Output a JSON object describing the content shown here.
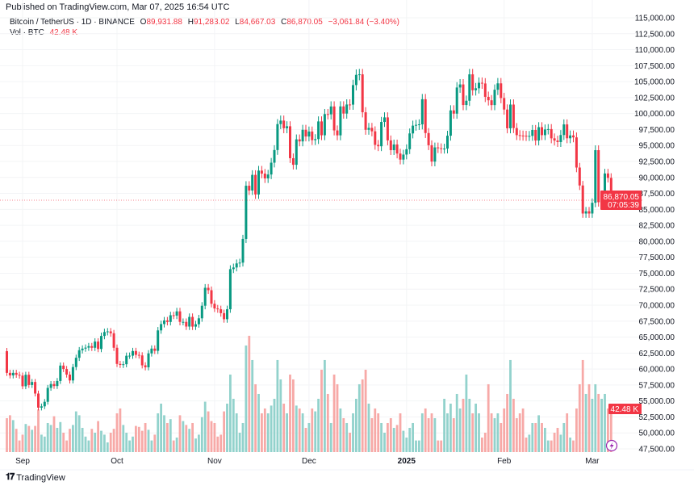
{
  "header": {
    "published": "Published on TradingView.com, Mar 07, 2025 16:54 UTC"
  },
  "legend": {
    "symbol": "Bitcoin / TetherUS · 1D · BINANCE",
    "open_label": "O",
    "open": "89,931.88",
    "high_label": "H",
    "high": "91,283.02",
    "low_label": "L",
    "low": "84,667.03",
    "close_label": "C",
    "close": "86,870.05",
    "change": "−3,061.84 (−3.40%)",
    "vol_label": "Vol · BTC",
    "vol": "42.48 K"
  },
  "price_axis": {
    "labels": [
      "115,000.00",
      "112,500.00",
      "110,000.00",
      "107,500.00",
      "105,000.00",
      "102,500.00",
      "100,000.00",
      "97,500.00",
      "95,000.00",
      "92,500.00",
      "90,000.00",
      "87,500.00",
      "85,000.00",
      "82,500.00",
      "80,000.00",
      "77,500.00",
      "75,000.00",
      "72,500.00",
      "70,000.00",
      "67,500.00",
      "65,000.00",
      "62,500.00",
      "60,000.00",
      "57,500.00",
      "55,000.00",
      "52,500.00",
      "50,000.00",
      "47,500.00"
    ],
    "current_price": "86,870.05",
    "countdown": "07:05:39",
    "volume_badge": "42.48 K"
  },
  "time_axis": [
    {
      "label": "Sep",
      "day": 5,
      "bold": false
    },
    {
      "label": "Oct",
      "day": 35,
      "bold": false
    },
    {
      "label": "Nov",
      "day": 66,
      "bold": false
    },
    {
      "label": "Dec",
      "day": 96,
      "bold": false
    },
    {
      "label": "2025",
      "day": 127,
      "bold": true
    },
    {
      "label": "Feb",
      "day": 158,
      "bold": false
    },
    {
      "label": "Mar",
      "day": 186,
      "bold": false
    }
  ],
  "colors": {
    "up": "#089981",
    "down": "#f23645",
    "up_volume": "#92d2cc",
    "down_volume": "#f7a9a7",
    "lightning": "#9c27b0"
  },
  "footer": {
    "brand": "TradingView"
  },
  "chart_data": {
    "type": "candlestick",
    "symbol": "BTCUSDT",
    "interval": "1D",
    "first_date": "2024-08-27",
    "first_open": 62800,
    "ylim": [
      47500,
      115000
    ],
    "closes": [
      59400,
      59000,
      59400,
      59100,
      58970,
      57300,
      59100,
      57500,
      57970,
      56160,
      53950,
      54160,
      54870,
      57050,
      57650,
      57340,
      58130,
      60540,
      60000,
      59130,
      58210,
      60310,
      61760,
      62940,
      63200,
      63350,
      63580,
      63330,
      64300,
      63140,
      65180,
      65790,
      65890,
      65600,
      63330,
      60800,
      60650,
      60750,
      62080,
      62090,
      62820,
      62220,
      62130,
      60580,
      60270,
      62450,
      63200,
      62850,
      66050,
      67040,
      67610,
      67370,
      68420,
      68360,
      69030,
      67380,
      67380,
      66650,
      68160,
      66640,
      67010,
      67940,
      69910,
      72720,
      72340,
      70220,
      69480,
      69360,
      68750,
      67800,
      69360,
      75640,
      75900,
      76540,
      76660,
      80370,
      88700,
      87950,
      90400,
      87330,
      91070,
      90600,
      89850,
      90460,
      92310,
      94290,
      98350,
      98900,
      97700,
      98010,
      93010,
      91980,
      95960,
      95640,
      97460,
      96410,
      97190,
      95840,
      96000,
      98770,
      96600,
      99920,
      99880,
      101110,
      97360,
      96590,
      101120,
      100000,
      101420,
      101400,
      104460,
      106060,
      106140,
      100200,
      97460,
      97760,
      97220,
      95100,
      94880,
      98690,
      99400,
      95800,
      94270,
      95160,
      93740,
      92790,
      93580,
      94420,
      96890,
      98110,
      98230,
      98310,
      102250,
      96950,
      95040,
      92480,
      94700,
      94570,
      94490,
      94520,
      96530,
      100500,
      99990,
      104080,
      104560,
      101340,
      102010,
      106140,
      103650,
      103960,
      104820,
      104710,
      102620,
      102080,
      101330,
      103730,
      104730,
      102430,
      100630,
      97690,
      101410,
      97730,
      96620,
      96560,
      96530,
      96480,
      96500,
      97430,
      95780,
      97870,
      96620,
      97510,
      97570,
      96120,
      95770,
      95540,
      96640,
      98300,
      96130,
      96580,
      96270,
      91550,
      88740,
      84350,
      84700,
      84350,
      86030,
      94270,
      86120,
      87220,
      90620,
      89930,
      86870
    ],
    "volumes_k": [
      35,
      38,
      33,
      24,
      12,
      18,
      29,
      27,
      23,
      27,
      44,
      18,
      16,
      30,
      28,
      37,
      25,
      31,
      20,
      12,
      24,
      28,
      42,
      38,
      25,
      16,
      12,
      24,
      20,
      32,
      22,
      18,
      10,
      20,
      24,
      40,
      45,
      28,
      20,
      12,
      16,
      27,
      26,
      22,
      30,
      23,
      12,
      18,
      40,
      50,
      38,
      30,
      34,
      12,
      15,
      38,
      32,
      28,
      24,
      30,
      14,
      18,
      36,
      52,
      42,
      32,
      30,
      16,
      18,
      42,
      50,
      80,
      55,
      40,
      20,
      30,
      110,
      120,
      95,
      70,
      60,
      40,
      45,
      40,
      48,
      55,
      95,
      75,
      50,
      40,
      80,
      75,
      48,
      45,
      40,
      25,
      30,
      45,
      42,
      55,
      85,
      95,
      60,
      30,
      80,
      70,
      45,
      35,
      30,
      20,
      40,
      55,
      70,
      75,
      85,
      50,
      35,
      45,
      40,
      30,
      20,
      30,
      35,
      25,
      28,
      40,
      22,
      15,
      25,
      30,
      12,
      12,
      40,
      45,
      35,
      40,
      35,
      12,
      12,
      55,
      40,
      50,
      35,
      60,
      45,
      55,
      80,
      55,
      40,
      50,
      40,
      15,
      20,
      70,
      40,
      35,
      40,
      30,
      45,
      60,
      95,
      55,
      35,
      40,
      45,
      15,
      18,
      30,
      30,
      38,
      30,
      25,
      12,
      12,
      20,
      25,
      18,
      30,
      40,
      15,
      12,
      45,
      70,
      95,
      60,
      70,
      55,
      70,
      60,
      55,
      60,
      45,
      42.48
    ]
  }
}
